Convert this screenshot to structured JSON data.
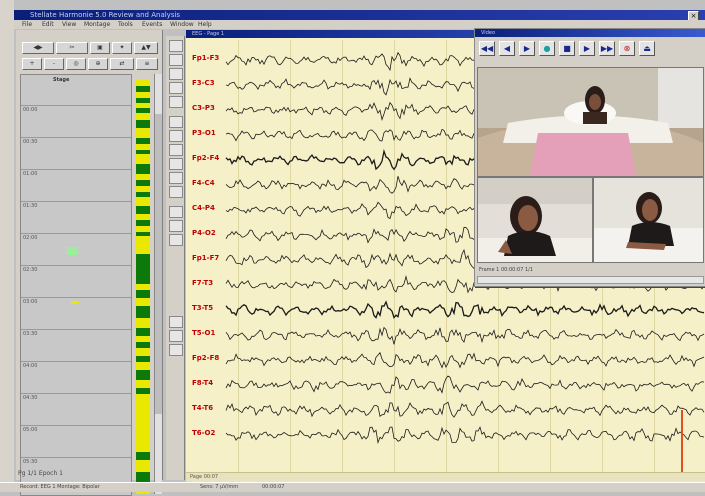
{
  "app": {
    "title": "Stellate Harmonie 5.0 Review and Analysis",
    "menu": [
      "File",
      "Edit",
      "View",
      "Montage",
      "Tools",
      "Events",
      "Window",
      "Help"
    ]
  },
  "left_panel": {
    "toolbar_row1": [
      "◀▶",
      "✂",
      "▣",
      "✦",
      "▲▼"
    ],
    "toolbar_row2": [
      "+",
      "-",
      "◎",
      "⊕",
      "⇄",
      "≡"
    ],
    "column_header": "Stage",
    "row_labels": [
      "00:00",
      "00:30",
      "01:00",
      "01:30",
      "02:00",
      "02:30",
      "03:00",
      "03:30",
      "04:00",
      "04:30",
      "05:00",
      "05:30",
      "06:00"
    ],
    "status": "Pg 1/1  Epoch 1"
  },
  "eeg": {
    "window_title": "EEG - Page 1",
    "channels": [
      "Fp1-F3",
      "F3-C3",
      "C3-P3",
      "P3-O1",
      "Fp2-F4",
      "F4-C4",
      "C4-P4",
      "P4-O2",
      "Fp1-F7",
      "F7-T3",
      "T3-T5",
      "T5-O1",
      "Fp2-F8",
      "F8-T4",
      "T4-T6",
      "T6-O2"
    ],
    "bottom_text": "Page 00:07",
    "marker_color": "#e05020",
    "background_color": "#f5f0c8",
    "trace_color": "#1a1a1a",
    "label_color": "#c00000"
  },
  "video": {
    "window_title": "Video",
    "controls": [
      {
        "name": "rewind-fast",
        "glyph": "◀◀"
      },
      {
        "name": "step-back",
        "glyph": "◀"
      },
      {
        "name": "play",
        "glyph": "▶"
      },
      {
        "name": "loop",
        "glyph": "●"
      },
      {
        "name": "stop",
        "glyph": "■"
      },
      {
        "name": "step-forward",
        "glyph": "▶"
      },
      {
        "name": "fast-forward",
        "glyph": "▶▶"
      },
      {
        "name": "zoom",
        "glyph": "⊗"
      },
      {
        "name": "eject",
        "glyph": "⏏"
      }
    ],
    "status": "Frame 1  00:00:07  1/1"
  },
  "status_bar": {
    "left": "Record: EEG 1  Montage: Bipolar",
    "middle": "Sens: 7 µV/mm",
    "right": "00:00:07"
  }
}
